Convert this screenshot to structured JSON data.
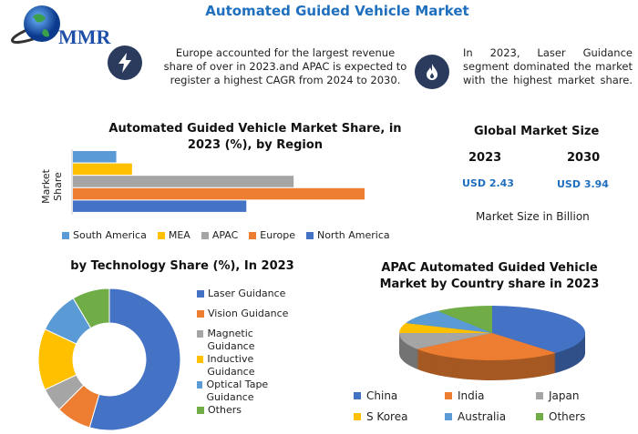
{
  "header": {
    "title": "Automated Guided Vehicle Market",
    "logo_text": "MMR"
  },
  "notes": [
    {
      "icon": "lightning-icon",
      "text": "Europe accounted for the largest revenue share of over in 2023.and APAC is expected to register a highest CAGR from 2024 to 2030."
    },
    {
      "icon": "flame-icon",
      "text": "In 2023, Laser Guidance segment dominated the market with the highest market share."
    }
  ],
  "market_size": {
    "title": "Global Market Size",
    "years": [
      "2023",
      "2030"
    ],
    "values": [
      "USD 2.43",
      "USD 3.94"
    ],
    "unit_label": "Market Size in Billion"
  },
  "colors": {
    "blue": "#4472c4",
    "orange": "#ed7d31",
    "gray": "#a5a5a5",
    "yellow": "#ffc000",
    "lightblue": "#5b9bd5",
    "green": "#70ad47",
    "title": "#1f6fbf",
    "navy": "#2a3b5e"
  },
  "chart_data": [
    {
      "type": "bar",
      "orientation": "horizontal",
      "title": "Automated Guided Vehicle Market Share, in 2023 (%), by Region",
      "ylabel": "Market Share",
      "xlabel": "",
      "categories": [
        "South America",
        "MEA",
        "APAC",
        "Europe",
        "North America"
      ],
      "values": [
        5.5,
        7.5,
        28,
        37,
        22
      ],
      "colors": [
        "#5b9bd5",
        "#ffc000",
        "#a5a5a5",
        "#ed7d31",
        "#4472c4"
      ],
      "legend": "bottom",
      "grid": false
    },
    {
      "type": "pie",
      "variant": "donut",
      "title": "by Technology Share (%), In 2023",
      "categories": [
        "Laser Guidance",
        "Vision Guidance",
        "Magnetic Guidance",
        "Inductive Guidance",
        "Optical Tape Guidance",
        "Others"
      ],
      "values": [
        54.5,
        8,
        5.5,
        14,
        9.5,
        8.5
      ],
      "colors": [
        "#4472c4",
        "#ed7d31",
        "#a5a5a5",
        "#ffc000",
        "#5b9bd5",
        "#70ad47"
      ],
      "legend": "right"
    },
    {
      "type": "pie",
      "variant": "3d",
      "title": "APAC Automated Guided Vehicle Market by Country share in 2023",
      "categories": [
        "China",
        "India",
        "Japan",
        "S Korea",
        "Australia",
        "Others"
      ],
      "values": [
        38,
        27,
        10,
        6,
        9,
        10
      ],
      "colors": [
        "#4472c4",
        "#ed7d31",
        "#a5a5a5",
        "#ffc000",
        "#5b9bd5",
        "#70ad47"
      ],
      "legend": "bottom"
    }
  ]
}
